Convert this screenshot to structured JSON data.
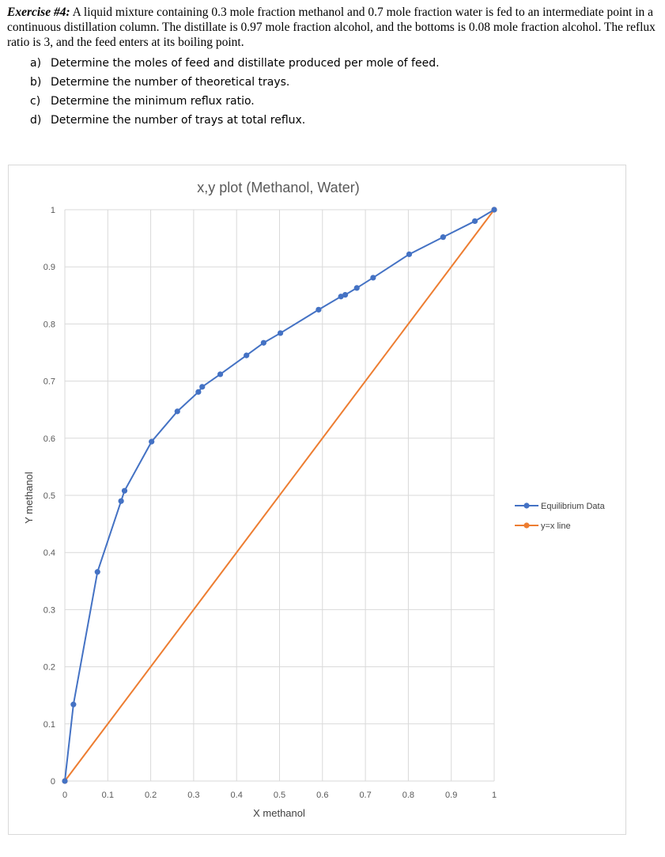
{
  "problem": {
    "label": "Exercise #4:",
    "text": "A liquid mixture containing 0.3 mole fraction methanol and 0.7 mole fraction water is fed to an intermediate point in a continuous distillation column.  The distillate is 0.97 mole fraction alcohol, and the bottoms is 0.08 mole fraction alcohol. The reflux ratio is 3, and the feed enters at its boiling point.",
    "questions": [
      {
        "letter": "a)",
        "text": "Determine the moles of feed and distillate produced per mole of feed."
      },
      {
        "letter": "b)",
        "text": "Determine the number of theoretical trays."
      },
      {
        "letter": "c)",
        "text": "Determine the minimum reflux ratio."
      },
      {
        "letter": "d)",
        "text": "Determine the number of trays at total reflux."
      }
    ]
  },
  "chart_data": {
    "type": "scatter",
    "title": "x,y plot (Methanol, Water)",
    "xlabel": "X methanol",
    "ylabel": "Y methanol",
    "xlim": [
      0,
      1
    ],
    "ylim": [
      0,
      1
    ],
    "xticks": [
      "0",
      "0.1",
      "0.2",
      "0.3",
      "0.4",
      "0.5",
      "0.6",
      "0.7",
      "0.8",
      "0.9",
      "1"
    ],
    "yticks": [
      "0",
      "0.1",
      "0.2",
      "0.3",
      "0.4",
      "0.5",
      "0.6",
      "0.7",
      "0.8",
      "0.9",
      "1"
    ],
    "grid": true,
    "legend_position": "right",
    "series": [
      {
        "name": "Equilibrium Data",
        "color": "#4472C4",
        "points": [
          [
            0,
            0
          ],
          [
            0.02,
            0.134
          ],
          [
            0.076,
            0.366
          ],
          [
            0.131,
            0.49
          ],
          [
            0.139,
            0.508
          ],
          [
            0.202,
            0.594
          ],
          [
            0.262,
            0.647
          ],
          [
            0.311,
            0.681
          ],
          [
            0.32,
            0.69
          ],
          [
            0.362,
            0.712
          ],
          [
            0.423,
            0.745
          ],
          [
            0.463,
            0.767
          ],
          [
            0.502,
            0.784
          ],
          [
            0.591,
            0.825
          ],
          [
            0.643,
            0.848
          ],
          [
            0.653,
            0.851
          ],
          [
            0.68,
            0.863
          ],
          [
            0.718,
            0.881
          ],
          [
            0.802,
            0.922
          ],
          [
            0.881,
            0.952
          ],
          [
            0.955,
            0.98
          ],
          [
            1,
            1
          ]
        ]
      },
      {
        "name": "y=x line",
        "color": "#ED7D31",
        "points": [
          [
            0,
            0
          ],
          [
            1,
            1
          ]
        ]
      }
    ]
  }
}
